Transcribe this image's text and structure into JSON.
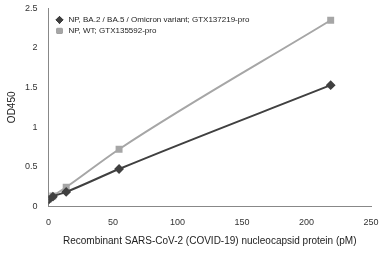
{
  "chart_data": {
    "type": "line",
    "x_label": "Recombinant SARS-CoV-2 (COVID-19) nucleocapsid protein (pM)",
    "y_label": "OD450",
    "series": [
      {
        "name": "NP, BA.2 / BA.5 / Omicron variant; GTX137219-pro",
        "color": "#404040",
        "marker": "diamond",
        "x": [
          0,
          3.4,
          13.7,
          54.7,
          218.75
        ],
        "values": [
          0.08,
          0.12,
          0.18,
          0.47,
          1.53
        ]
      },
      {
        "name": "NP, WT; GTX135592-pro",
        "color": "#a6a6a6",
        "marker": "square",
        "x": [
          0,
          3.4,
          13.7,
          54.7,
          218.75
        ],
        "values": [
          0.09,
          0.13,
          0.24,
          0.72,
          2.35
        ]
      }
    ],
    "xlim": [
      0,
      250
    ],
    "xticks": [
      0,
      50,
      100,
      150,
      200,
      250
    ],
    "ylim": [
      0,
      2.5
    ],
    "yticks": [
      0,
      0.5,
      1,
      1.5,
      2,
      2.5
    ],
    "grid": false,
    "legend": "upper left"
  }
}
